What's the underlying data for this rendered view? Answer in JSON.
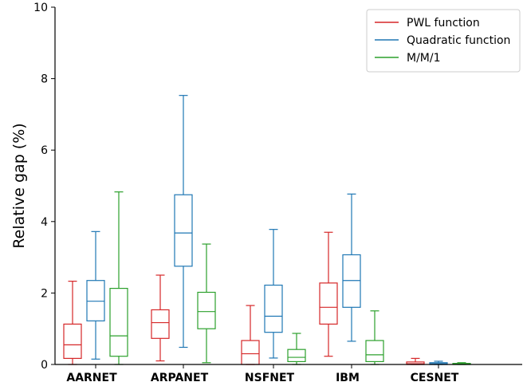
{
  "chart_data": {
    "type": "boxplot",
    "title": "",
    "xlabel": "",
    "ylabel": "Relative gap (%)",
    "ylim": [
      0,
      10
    ],
    "yticks": [
      0,
      2,
      4,
      6,
      8,
      10
    ],
    "grid": false,
    "legend_position": "top-right",
    "categories": [
      "AARNET",
      "ARPANET",
      "NSFNET",
      "IBM",
      "CESNET"
    ],
    "series": [
      {
        "name": "PWL function",
        "color": "#d62728",
        "boxes": [
          {
            "whislo": 0.0,
            "q1": 0.17,
            "med": 0.55,
            "q3": 1.13,
            "whishi": 2.33
          },
          {
            "whislo": 0.1,
            "q1": 0.73,
            "med": 1.17,
            "q3": 1.53,
            "whishi": 2.5
          },
          {
            "whislo": 0.0,
            "q1": 0.0,
            "med": 0.3,
            "q3": 0.67,
            "whishi": 1.65
          },
          {
            "whislo": 0.23,
            "q1": 1.13,
            "med": 1.6,
            "q3": 2.28,
            "whishi": 3.7
          },
          {
            "whislo": 0.0,
            "q1": 0.0,
            "med": 0.02,
            "q3": 0.07,
            "whishi": 0.17
          }
        ]
      },
      {
        "name": "Quadratic function",
        "color": "#1f77b4",
        "boxes": [
          {
            "whislo": 0.15,
            "q1": 1.22,
            "med": 1.77,
            "q3": 2.35,
            "whishi": 3.72
          },
          {
            "whislo": 0.48,
            "q1": 2.75,
            "med": 3.68,
            "q3": 4.75,
            "whishi": 7.53
          },
          {
            "whislo": 0.18,
            "q1": 0.9,
            "med": 1.35,
            "q3": 2.22,
            "whishi": 3.78
          },
          {
            "whislo": 0.65,
            "q1": 1.6,
            "med": 2.35,
            "q3": 3.07,
            "whishi": 4.77
          },
          {
            "whislo": 0.0,
            "q1": 0.0,
            "med": 0.02,
            "q3": 0.05,
            "whishi": 0.09
          }
        ]
      },
      {
        "name": "M/M/1",
        "color": "#2ca02c",
        "boxes": [
          {
            "whislo": 0.0,
            "q1": 0.23,
            "med": 0.8,
            "q3": 2.13,
            "whishi": 4.83
          },
          {
            "whislo": 0.05,
            "q1": 1.0,
            "med": 1.48,
            "q3": 2.02,
            "whishi": 3.37
          },
          {
            "whislo": 0.0,
            "q1": 0.08,
            "med": 0.2,
            "q3": 0.42,
            "whishi": 0.87
          },
          {
            "whislo": 0.0,
            "q1": 0.08,
            "med": 0.27,
            "q3": 0.67,
            "whishi": 1.5
          },
          {
            "whislo": 0.0,
            "q1": 0.0,
            "med": 0.01,
            "q3": 0.03,
            "whishi": 0.05
          }
        ]
      }
    ]
  }
}
